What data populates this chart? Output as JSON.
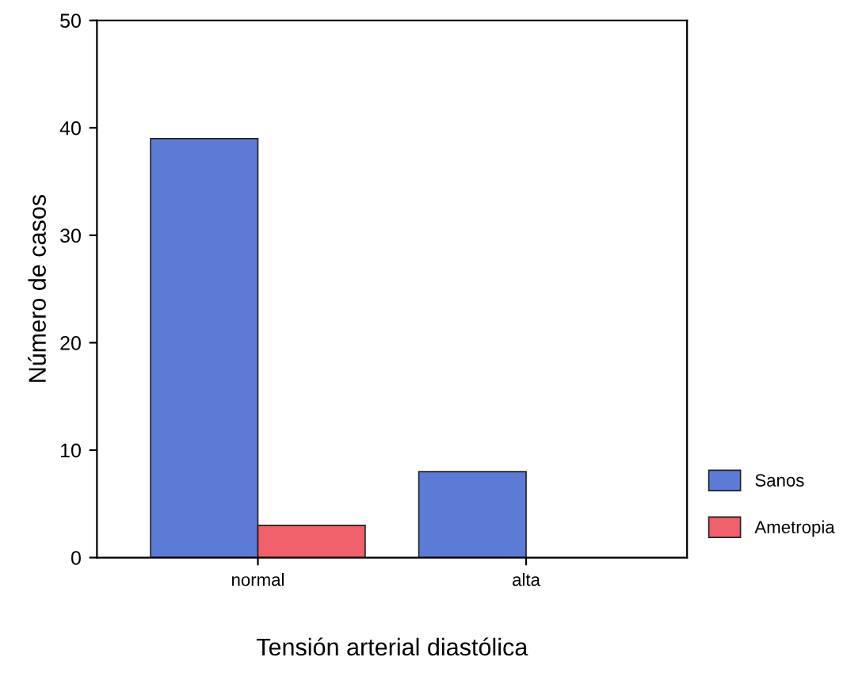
{
  "chart_data": {
    "type": "bar",
    "xlabel": "Tensión arterial diastólica",
    "ylabel": "Número de casos",
    "categories": [
      "normal",
      "alta"
    ],
    "series": [
      {
        "name": "Sanos",
        "color": "#5b7bd6",
        "values": [
          39,
          8
        ]
      },
      {
        "name": "Ametropia",
        "color": "#f0606a",
        "values": [
          3,
          null
        ]
      }
    ],
    "ylim": [
      0,
      50
    ],
    "yticks": [
      0,
      10,
      20,
      30,
      40,
      50
    ],
    "legend": "right",
    "grid": false
  }
}
